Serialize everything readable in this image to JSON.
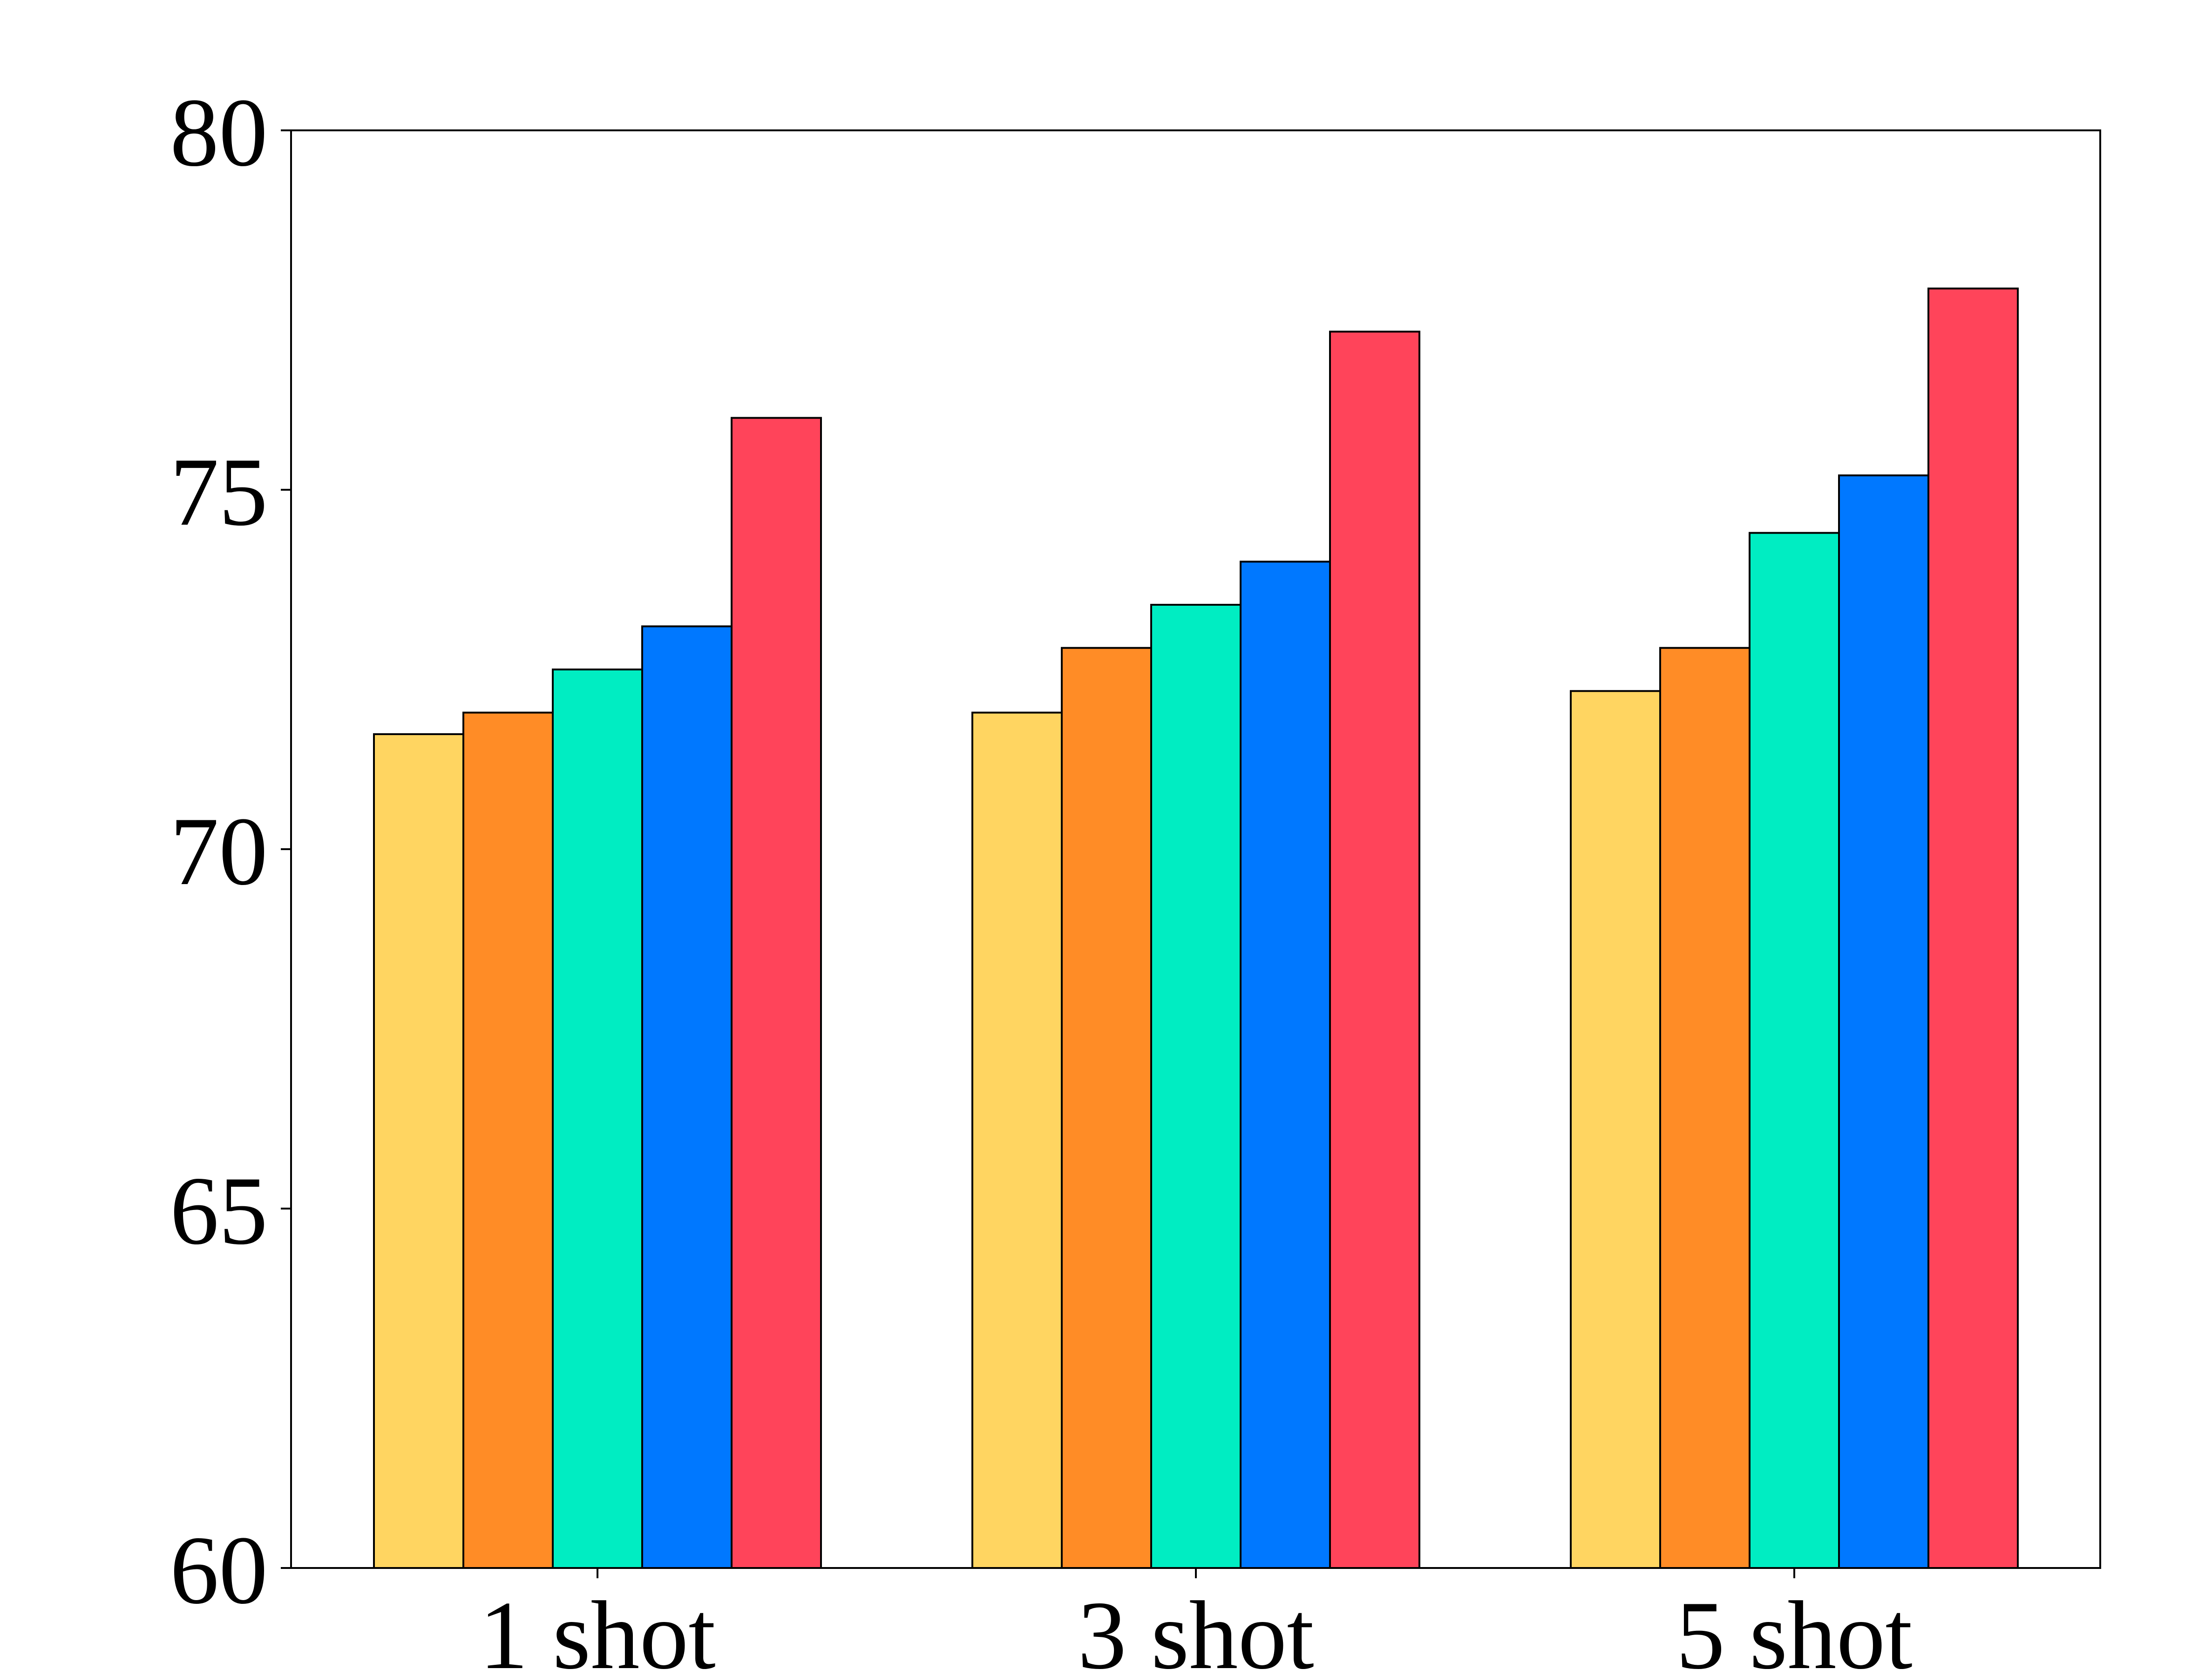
{
  "chart_data": {
    "type": "bar",
    "title": "",
    "xlabel": "",
    "ylabel": "",
    "categories": [
      "1 shot",
      "3 shot",
      "5 shot"
    ],
    "ylim": [
      60,
      80
    ],
    "yticks": [
      "60",
      "65",
      "70",
      "75",
      "80"
    ],
    "grid": false,
    "legend": "none",
    "series": [
      {
        "color": "#FFD561",
        "values": [
          71.6,
          71.9,
          72.2
        ]
      },
      {
        "color": "#FF8C26",
        "values": [
          71.9,
          72.8,
          72.8
        ]
      },
      {
        "color": "#00EDC2",
        "values": [
          72.5,
          73.4,
          74.4
        ]
      },
      {
        "color": "#0078FF",
        "values": [
          73.1,
          74.0,
          75.2
        ]
      },
      {
        "color": "#FF445A",
        "values": [
          76.0,
          77.2,
          77.8
        ]
      }
    ]
  }
}
